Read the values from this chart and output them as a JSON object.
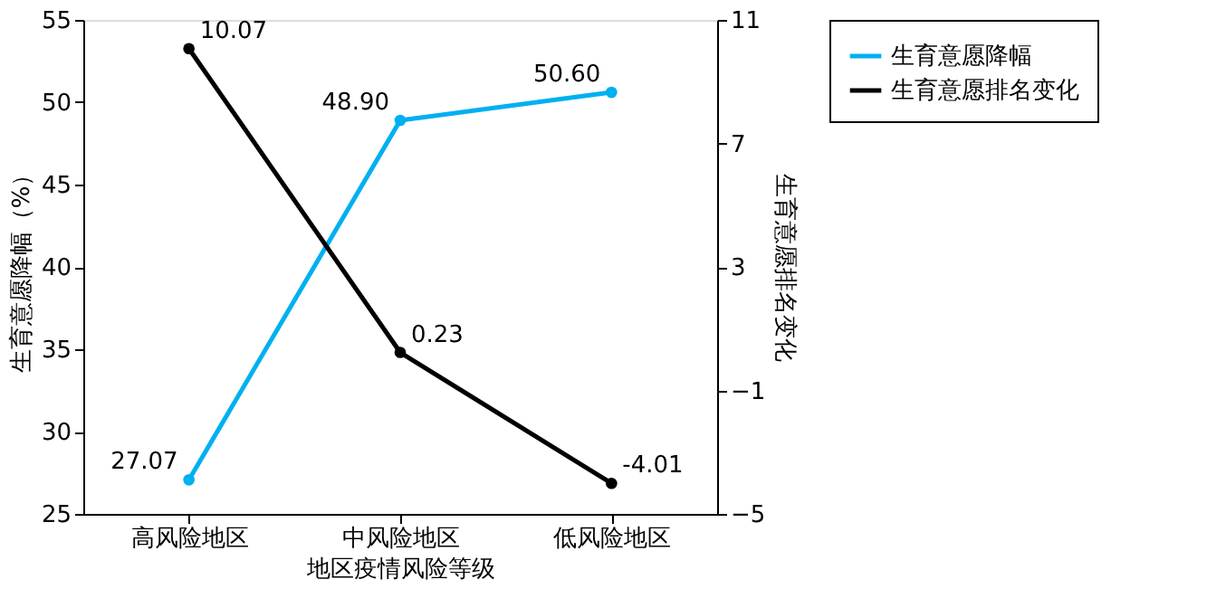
{
  "chart_data": {
    "type": "line",
    "xlabel": "地区疫情风险等级",
    "ylabel": "生育意愿降幅（%）",
    "y2label": "生育意愿排名变化",
    "categories": [
      "高风险地区",
      "中风险地区",
      "低风险地区"
    ],
    "series": [
      {
        "name": "生育意愿降幅",
        "color": "#00b0f0",
        "values": [
          27.07,
          48.9,
          50.6
        ],
        "value_labels": [
          "27.07",
          "48.90",
          "50.60"
        ]
      },
      {
        "name": "生育意愿排名变化",
        "color": "#000000",
        "values": [
          10.07,
          0.23,
          -4.01
        ],
        "value_labels": [
          "10.07",
          "0.23",
          "-4.01"
        ],
        "axis": "y2"
      }
    ],
    "ylim": [
      25,
      55
    ],
    "yticks": [
      25,
      30,
      35,
      40,
      45,
      50,
      55
    ],
    "y2lim": [
      -5,
      11
    ],
    "y2ticks": [
      -5,
      -1,
      3,
      7,
      11
    ],
    "marker": "circle",
    "line_style": "solid",
    "legend": "right",
    "grid": false
  }
}
